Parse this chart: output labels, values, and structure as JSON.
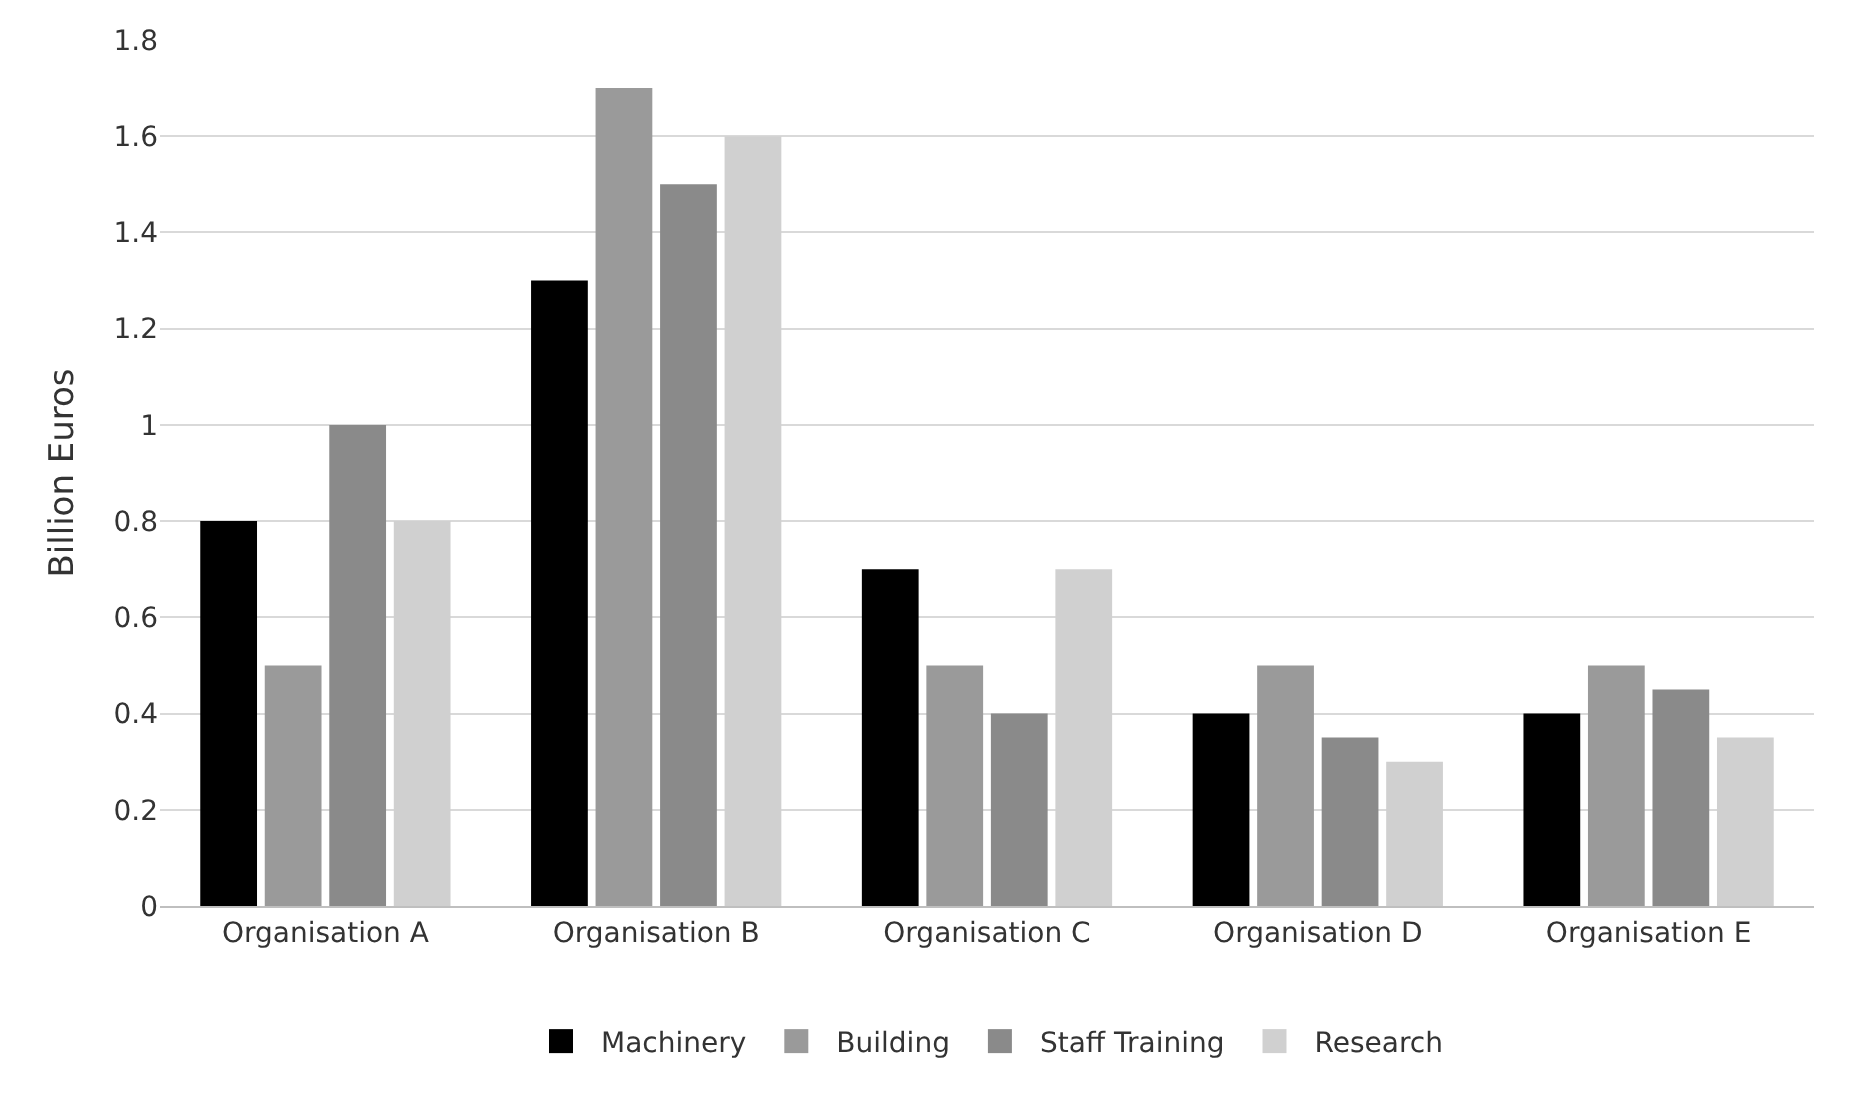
{
  "chart_data": {
    "type": "bar",
    "ylabel": "Billion Euros",
    "categories": [
      "Organisation A",
      "Organisation B",
      "Organisation C",
      "Organisation D",
      "Organisation E"
    ],
    "series": [
      {
        "name": "Machinery",
        "color": "#000000",
        "values": [
          0.8,
          1.3,
          0.7,
          0.4,
          0.4
        ]
      },
      {
        "name": "Building",
        "color": "#9a9a9a",
        "values": [
          0.5,
          1.7,
          0.5,
          0.5,
          0.5
        ]
      },
      {
        "name": "Staff Training",
        "color": "#8a8a8a",
        "values": [
          1.0,
          1.5,
          0.4,
          0.35,
          0.45
        ]
      },
      {
        "name": "Research",
        "color": "#d0d0d0",
        "values": [
          0.8,
          1.6,
          0.7,
          0.3,
          0.35
        ]
      }
    ],
    "ylim": [
      0,
      1.8
    ],
    "yticks": [
      0,
      0.2,
      0.4,
      0.6,
      0.8,
      1,
      1.2,
      1.4,
      1.6,
      1.8
    ],
    "grid": "y",
    "legend": "bottom"
  }
}
